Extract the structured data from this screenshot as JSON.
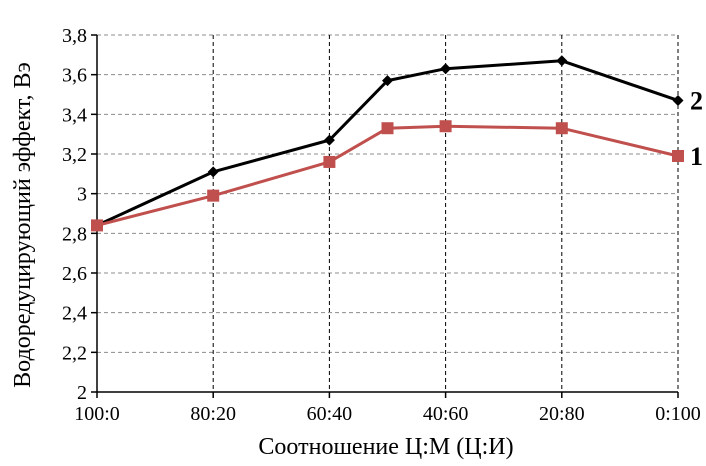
{
  "chart_data": {
    "type": "line",
    "title": "",
    "xlabel": "Соотношение Ц:М (Ц:И)",
    "ylabel": "Водоредуцирующий эффект, Вэ",
    "categories": [
      "100:0",
      "80:20",
      "60:40",
      "40:60",
      "20:80",
      "0:100"
    ],
    "ylim": [
      2,
      3.8
    ],
    "yticks": [
      "2",
      "2,2",
      "2,4",
      "2,6",
      "2,8",
      "3",
      "3,2",
      "3,4",
      "3,6",
      "3,8"
    ],
    "grid": true,
    "series": [
      {
        "name": "2",
        "color": "#000000",
        "marker": "diamond",
        "x": [
          0,
          20,
          40,
          50,
          60,
          80,
          100
        ],
        "values": [
          2.84,
          3.11,
          3.27,
          3.57,
          3.63,
          3.67,
          3.47
        ]
      },
      {
        "name": "1",
        "color": "#c0504d",
        "marker": "square",
        "x": [
          0,
          20,
          40,
          50,
          60,
          80,
          100
        ],
        "values": [
          2.84,
          2.99,
          3.16,
          3.33,
          3.34,
          3.33,
          3.19
        ]
      }
    ]
  }
}
